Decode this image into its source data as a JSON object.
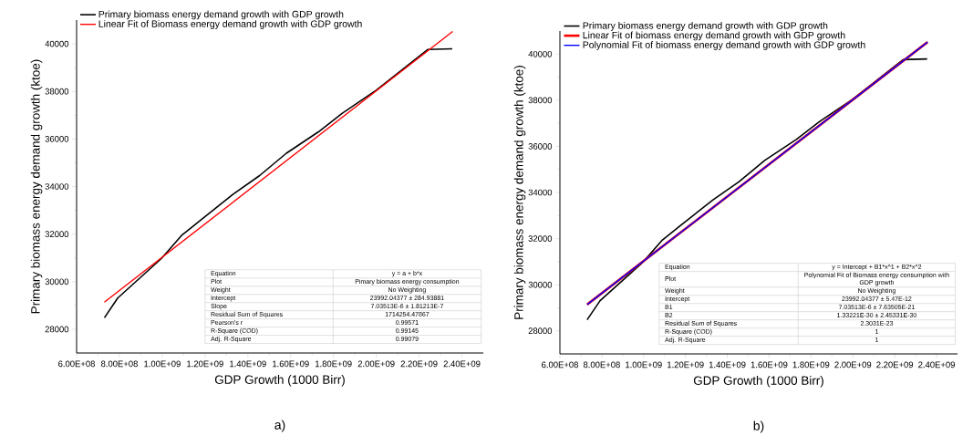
{
  "chart_data": [
    {
      "type": "line",
      "xlabel": "GDP Growth (1000 Birr)",
      "ylabel": "Primary biomass energy demand growth (ktoe)",
      "xlim": [
        600000000,
        2500000000
      ],
      "ylim": [
        27000,
        41000
      ],
      "xticks": [
        {
          "value": 600000000,
          "label": "6.00E+08"
        },
        {
          "value": 800000000,
          "label": "8.00E+08"
        },
        {
          "value": 1000000000,
          "label": "1.00E+09"
        },
        {
          "value": 1200000000,
          "label": "1.20E+09"
        },
        {
          "value": 1400000000,
          "label": "1.40E+09"
        },
        {
          "value": 1600000000,
          "label": "1.60E+09"
        },
        {
          "value": 1800000000,
          "label": "1.80E+09"
        },
        {
          "value": 2000000000,
          "label": "2.00E+09"
        },
        {
          "value": 2200000000,
          "label": "2.20E+09"
        },
        {
          "value": 2400000000,
          "label": "2.40E+09"
        }
      ],
      "yticks": [
        28000,
        30000,
        32000,
        34000,
        36000,
        38000,
        40000
      ],
      "legend": "top left",
      "marker": "none",
      "line_style": "solid",
      "series": [
        {
          "name": "Primary biomass energy demand growth with GDP growth",
          "color": "#000000",
          "x": [
            730000000,
            792000000,
            997000000,
            1090000000,
            1170000000,
            1330000000,
            1455000000,
            1580000000,
            1730000000,
            1840000000,
            2000000000,
            2240000000,
            2355000000
          ],
          "values": [
            28480,
            29310,
            30980,
            31940,
            32520,
            33670,
            34460,
            35400,
            36300,
            37070,
            38050,
            39760,
            39790
          ]
        },
        {
          "name": "Linear Fit of Biomass energy demand growth with GDP growth",
          "color": "#ff0000",
          "x": [
            730000000,
            2357000000
          ],
          "values": [
            29140,
            40520
          ]
        }
      ],
      "annotations": [
        "a)",
        "Equation",
        "y = a + b*x",
        "Plot",
        "Pimary biomass energy consumption",
        "Weight",
        "No Weighting",
        "Intercept",
        "23992.04377 ± 284.93881",
        "Slope",
        "7.03513E-6 ± 1.81213E-7",
        "Residual Sum of Squares",
        "1714254.47867",
        "Pearson's r",
        "0.99571",
        "R-Square (COD)",
        "0.99145",
        "Adj. R-Square",
        "0.99079"
      ]
    },
    {
      "type": "line",
      "xlabel": "GDP Growth (1000 Birr)",
      "ylabel": "Primary biomass energy demand growth (ktoe)",
      "xlim": [
        600000000,
        2500000000
      ],
      "ylim": [
        27000,
        41000
      ],
      "xticks": [
        {
          "value": 600000000,
          "label": "6.00E+08"
        },
        {
          "value": 800000000,
          "label": "8.00E+08"
        },
        {
          "value": 1000000000,
          "label": "1.00E+09"
        },
        {
          "value": 1200000000,
          "label": "1.20E+09"
        },
        {
          "value": 1400000000,
          "label": "1.40E+09"
        },
        {
          "value": 1600000000,
          "label": "1.60E+09"
        },
        {
          "value": 1800000000,
          "label": "1.80E+09"
        },
        {
          "value": 2000000000,
          "label": "2.00E+09"
        },
        {
          "value": 2200000000,
          "label": "2.20E+09"
        },
        {
          "value": 2400000000,
          "label": "2.40E+09"
        }
      ],
      "yticks": [
        28000,
        30000,
        32000,
        34000,
        36000,
        38000,
        40000
      ],
      "legend": "top left",
      "marker": "none",
      "line_style": "solid",
      "series": [
        {
          "name": "Primary biomass energy demand growth with GDP growth",
          "color": "#000000",
          "x": [
            730000000,
            792000000,
            997000000,
            1090000000,
            1170000000,
            1330000000,
            1455000000,
            1580000000,
            1730000000,
            1840000000,
            2000000000,
            2240000000,
            2355000000
          ],
          "values": [
            28480,
            29310,
            30980,
            31940,
            32520,
            33670,
            34460,
            35400,
            36300,
            37070,
            38050,
            39760,
            39790
          ]
        },
        {
          "name": "Linear Fit of biomass energy demand growth with GDP growth",
          "color": "#ff0000",
          "x": [
            730000000,
            2357000000
          ],
          "values": [
            29140,
            40520
          ]
        },
        {
          "name": "Polynomial Fit of biomass energy demand growth with GDP growth",
          "color": "#0000ff",
          "x": [
            730000000,
            2357000000
          ],
          "values": [
            29140,
            40520
          ]
        }
      ],
      "annotations": [
        "b)",
        "Equation",
        "y = Intercept + B1*x^1 + B2*x^2",
        "Plot",
        "Polynomial Fit of Biomass energy consumption with GDP growth",
        "Weight",
        "No Weighting",
        "Intercept",
        "23992.04377 ± 5.47E-12",
        "B1",
        "7.03513E-6 ± 7.63505E-21",
        "B2",
        "1.33221E-30 ± 2.45331E-30",
        "Residual Sum of Squares",
        "2.3031E-23",
        "R-Square (COD)",
        "1",
        "Adj. R-Square",
        "1"
      ]
    }
  ]
}
